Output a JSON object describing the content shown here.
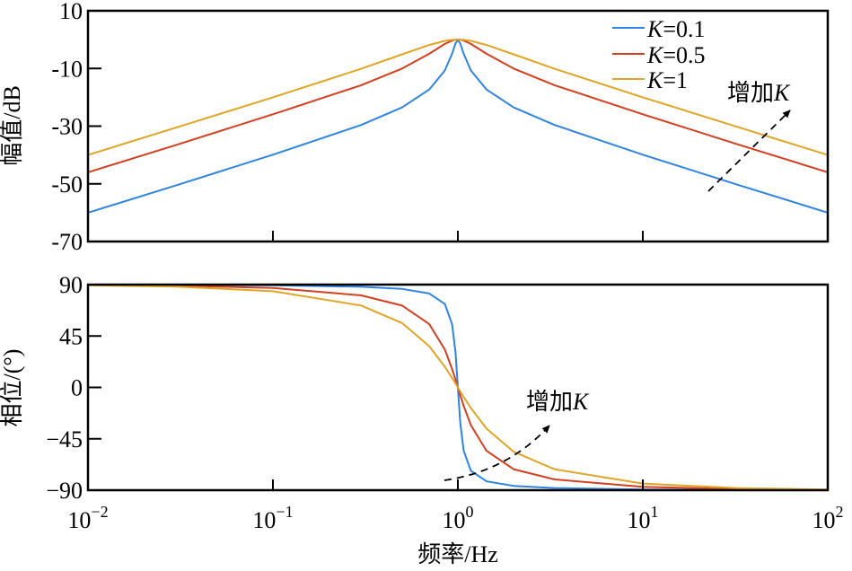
{
  "chart_data": [
    {
      "type": "line",
      "ylabel": "幅值/dB",
      "xscale": "log",
      "xlim": [
        0.01,
        100
      ],
      "ylim": [
        -70,
        10
      ],
      "yticks": [
        "10",
        "-10",
        "-30",
        "-50",
        "-70"
      ],
      "ytick_values": [
        10,
        -10,
        -30,
        -50,
        -70
      ],
      "legend_position": "top-right",
      "x": [
        0.01,
        0.03,
        0.1,
        0.3,
        0.5,
        0.7,
        0.85,
        0.93,
        0.97,
        1,
        1.031,
        1.075,
        1.176,
        1.429,
        2,
        3.333,
        10,
        33.33,
        100
      ],
      "series": [
        {
          "name": "K=0.1",
          "legend_k": "K",
          "legend_val": "=0.1",
          "color": "#2f84e0",
          "values": [
            -60.0,
            -50.5,
            -39.9,
            -29.6,
            -23.5,
            -17.3,
            -10.7,
            -4.9,
            -1.4,
            0,
            -1.4,
            -4.9,
            -10.7,
            -17.3,
            -23.5,
            -29.6,
            -39.9,
            -50.5,
            -60.0
          ]
        },
        {
          "name": "K=0.5",
          "legend_k": "K",
          "legend_val": "=0.5",
          "color": "#d2401f",
          "values": [
            -46.0,
            -36.5,
            -25.9,
            -15.8,
            -10.0,
            -4.9,
            -1.5,
            -0.35,
            -0.06,
            0,
            -0.06,
            -0.35,
            -1.5,
            -4.9,
            -10.0,
            -15.8,
            -25.9,
            -36.5,
            -46.0
          ]
        },
        {
          "name": "K=1",
          "legend_k": "K",
          "legend_val": "=1",
          "color": "#e0a526",
          "values": [
            -40.0,
            -30.5,
            -20.0,
            -10.1,
            -5.1,
            -1.85,
            -0.44,
            -0.09,
            -0.02,
            0,
            -0.02,
            -0.09,
            -0.44,
            -1.85,
            -5.1,
            -10.1,
            -20.0,
            -30.5,
            -40.0
          ]
        }
      ],
      "annotation": {
        "text": "增加",
        "k": "K"
      }
    },
    {
      "type": "line",
      "ylabel": "相位/(°)",
      "xlabel": "频率/Hz",
      "xscale": "log",
      "xlim": [
        0.01,
        100
      ],
      "ylim": [
        -90,
        90
      ],
      "yticks": [
        "90",
        "45",
        "0",
        "−45",
        "−90"
      ],
      "ytick_values": [
        90,
        45,
        0,
        -45,
        -90
      ],
      "xticks": [
        {
          "base": "10",
          "exp": "−2"
        },
        {
          "base": "10",
          "exp": "−1"
        },
        {
          "base": "10",
          "exp": "0"
        },
        {
          "base": "10",
          "exp": "1"
        },
        {
          "base": "10",
          "exp": "2"
        }
      ],
      "xtick_values": [
        0.01,
        0.1,
        1,
        10,
        100
      ],
      "x": [
        0.01,
        0.03,
        0.1,
        0.3,
        0.5,
        0.7,
        0.85,
        0.93,
        0.97,
        1,
        1.031,
        1.075,
        1.176,
        1.429,
        2,
        3.333,
        10,
        33.33,
        100
      ],
      "series": [
        {
          "name": "K=0.1",
          "color": "#2f84e0",
          "values": [
            89.9,
            89.8,
            89.4,
            88.1,
            86.2,
            82.2,
            73.0,
            55.5,
            31.4,
            0,
            -31.4,
            -55.5,
            -73.0,
            -82.2,
            -86.2,
            -88.1,
            -89.4,
            -89.8,
            -89.9
          ]
        },
        {
          "name": "K=0.5",
          "color": "#d2401f",
          "values": [
            89.7,
            89.1,
            87.1,
            80.6,
            71.6,
            55.5,
            33.1,
            16.2,
            7.0,
            0,
            -7.0,
            -16.2,
            -33.1,
            -55.5,
            -71.6,
            -80.6,
            -87.1,
            -89.1,
            -89.7
          ]
        },
        {
          "name": "K=1",
          "color": "#e0a526",
          "values": [
            89.4,
            88.3,
            84.2,
            71.7,
            56.3,
            36.1,
            18.1,
            8.3,
            3.5,
            0,
            -3.5,
            -8.3,
            -18.1,
            -36.1,
            -56.3,
            -71.7,
            -84.2,
            -88.3,
            -89.4
          ]
        }
      ],
      "annotation": {
        "text": "增加",
        "k": "K"
      }
    }
  ]
}
